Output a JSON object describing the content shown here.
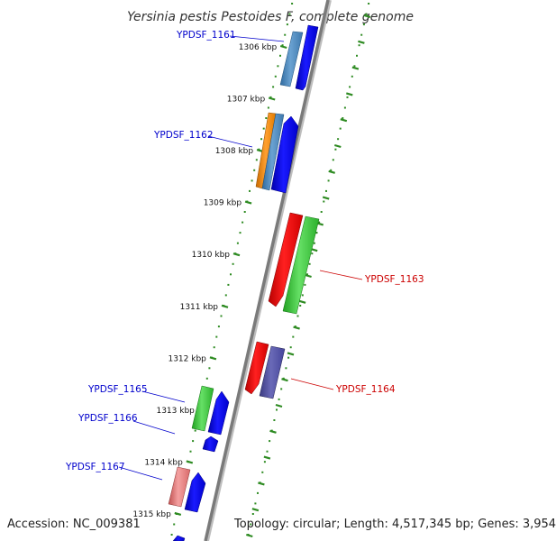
{
  "title": "Yersinia pestis Pestoides F, complete genome",
  "footer": {
    "accession": "Accession: NC_009381",
    "summary": "Topology: circular; Length: 4,517,345 bp; Genes: 3,954"
  },
  "colors": {
    "backbone": "#7a7a7a",
    "ruler": "#2e8b22",
    "forward_label": "#0000cc",
    "reverse_label": "#cc0000"
  },
  "ticks": [
    {
      "label": "1306 kbp"
    },
    {
      "label": "1307 kbp"
    },
    {
      "label": "1308 kbp"
    },
    {
      "label": "1309 kbp"
    },
    {
      "label": "1310 kbp"
    },
    {
      "label": "1311 kbp"
    },
    {
      "label": "1312 kbp"
    },
    {
      "label": "1313 kbp"
    },
    {
      "label": "1314 kbp"
    },
    {
      "label": "1315 kbp"
    }
  ],
  "genes": [
    {
      "label": "YPDSF_1161",
      "strand": "forward",
      "cog_color": "#4a84b8"
    },
    {
      "label": "YPDSF_1162",
      "strand": "forward",
      "cog_color": "#f08c1a"
    },
    {
      "label": "YPDSF_1163",
      "strand": "reverse",
      "cog_color": "#ee1111"
    },
    {
      "label": "YPDSF_1164",
      "strand": "reverse",
      "cog_color": "#ee1111"
    },
    {
      "label": "YPDSF_1165",
      "strand": "forward",
      "cog_color": "#3cc83c"
    },
    {
      "label": "YPDSF_1166",
      "strand": "forward",
      "cog_color": null
    },
    {
      "label": "YPDSF_1167",
      "strand": "forward",
      "cog_color": "#e88080"
    }
  ]
}
